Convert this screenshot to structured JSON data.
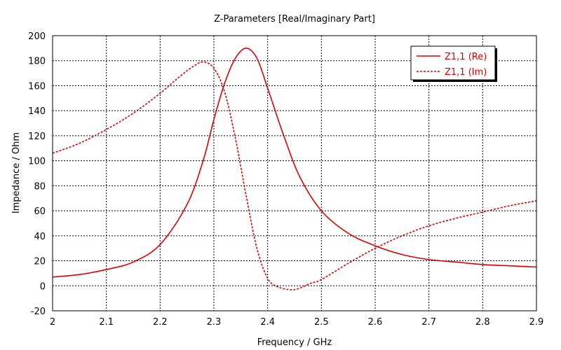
{
  "chart_data": {
    "type": "line",
    "title": "Z-Parameters [Real/Imaginary Part]",
    "xlabel": "Frequency / GHz",
    "ylabel": "Impedance / Ohm",
    "xlim": [
      2.0,
      2.9
    ],
    "ylim": [
      -20,
      200
    ],
    "x_ticks": [
      "2",
      "2.1",
      "2.2",
      "2.3",
      "2.4",
      "2.5",
      "2.6",
      "2.7",
      "2.8",
      "2.9"
    ],
    "y_ticks": [
      "200",
      "180",
      "160",
      "140",
      "120",
      "100",
      "80",
      "60",
      "40",
      "20",
      "0",
      "-20"
    ],
    "grid": true,
    "legend_position": "top-right",
    "series": [
      {
        "name": "Z1,1 (Re)",
        "color": "#e00000",
        "style": "solid",
        "points": [
          [
            2.0,
            7
          ],
          [
            2.05,
            9
          ],
          [
            2.1,
            13
          ],
          [
            2.15,
            19
          ],
          [
            2.2,
            33
          ],
          [
            2.25,
            65
          ],
          [
            2.28,
            100
          ],
          [
            2.3,
            133
          ],
          [
            2.32,
            162
          ],
          [
            2.34,
            182
          ],
          [
            2.36,
            190
          ],
          [
            2.38,
            182
          ],
          [
            2.4,
            158
          ],
          [
            2.43,
            120
          ],
          [
            2.46,
            87
          ],
          [
            2.5,
            60
          ],
          [
            2.55,
            42
          ],
          [
            2.6,
            32
          ],
          [
            2.65,
            25
          ],
          [
            2.7,
            21
          ],
          [
            2.75,
            19
          ],
          [
            2.8,
            17
          ],
          [
            2.85,
            16
          ],
          [
            2.9,
            15
          ]
        ]
      },
      {
        "name": "Z1,1 (Im)",
        "color": "#e00000",
        "style": "dashed",
        "points": [
          [
            2.0,
            106
          ],
          [
            2.05,
            114
          ],
          [
            2.1,
            125
          ],
          [
            2.15,
            138
          ],
          [
            2.2,
            154
          ],
          [
            2.23,
            165
          ],
          [
            2.26,
            175
          ],
          [
            2.28,
            179
          ],
          [
            2.3,
            174
          ],
          [
            2.32,
            155
          ],
          [
            2.34,
            118
          ],
          [
            2.36,
            72
          ],
          [
            2.38,
            30
          ],
          [
            2.4,
            6
          ],
          [
            2.42,
            -1
          ],
          [
            2.45,
            -3
          ],
          [
            2.48,
            2
          ],
          [
            2.5,
            5
          ],
          [
            2.55,
            18
          ],
          [
            2.6,
            30
          ],
          [
            2.65,
            40
          ],
          [
            2.7,
            48
          ],
          [
            2.75,
            54
          ],
          [
            2.8,
            59
          ],
          [
            2.85,
            64
          ],
          [
            2.9,
            68
          ]
        ]
      }
    ]
  }
}
